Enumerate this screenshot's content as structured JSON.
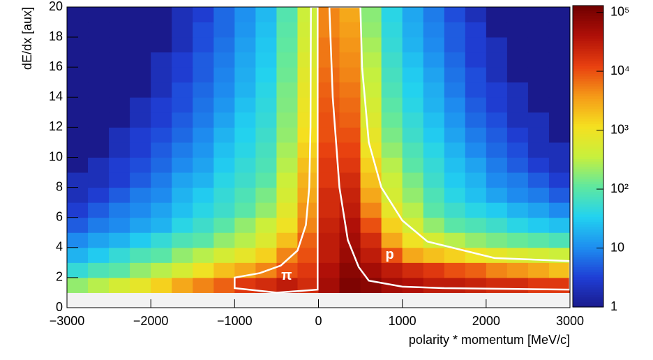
{
  "chart_data": {
    "type": "heatmap",
    "xlabel": "polarity * momentum [MeV/c]",
    "ylabel": "dE/dx [aux]",
    "xlim": [
      -3000,
      3000
    ],
    "ylim": [
      0,
      20
    ],
    "xticks": [
      {
        "value": -3000,
        "label": "−3000"
      },
      {
        "value": -2000,
        "label": "−2000"
      },
      {
        "value": -1000,
        "label": "−1000"
      },
      0,
      1000,
      2000,
      3000
    ],
    "yticks": [
      0,
      2,
      4,
      6,
      8,
      10,
      12,
      14,
      16,
      18,
      20
    ],
    "zlim": [
      1,
      130000
    ],
    "zscale": "log",
    "zticks": [
      1,
      10,
      {
        "value": 100,
        "label": "10²"
      },
      {
        "value": 1000,
        "label": "10³"
      },
      {
        "value": 10000,
        "label": "10⁴"
      },
      {
        "value": 100000,
        "label": "10⁵"
      }
    ],
    "colors": [
      "#1a1a8c",
      "#1f3fd6",
      "#1e8ff0",
      "#22d2f0",
      "#5fe8a0",
      "#c8f03c",
      "#f5e020",
      "#f59a18",
      "#e84010",
      "#b01008",
      "#700000"
    ],
    "z": [
      [
        0,
        0,
        0,
        0,
        0,
        0,
        0,
        0,
        0,
        0,
        0,
        0,
        0,
        0,
        0,
        0,
        0,
        0,
        0,
        0,
        0,
        0,
        0,
        0
      ],
      [
        200,
        300,
        500,
        800,
        1500,
        3000,
        5000,
        8000,
        15000,
        20000,
        30000,
        20000,
        50000,
        100000,
        80000,
        50000,
        40000,
        30000,
        30000,
        25000,
        20000,
        20000,
        15000,
        15000
      ],
      [
        50,
        80,
        100,
        200,
        300,
        500,
        1000,
        2000,
        3000,
        5000,
        10000,
        15000,
        40000,
        80000,
        50000,
        30000,
        20000,
        15000,
        10000,
        8000,
        5000,
        4000,
        3000,
        2000
      ],
      [
        20,
        30,
        50,
        80,
        100,
        200,
        300,
        500,
        800,
        1500,
        5000,
        10000,
        30000,
        60000,
        30000,
        10000,
        3000,
        2000,
        1500,
        1000,
        800,
        600,
        500,
        400
      ],
      [
        10,
        15,
        20,
        30,
        50,
        80,
        100,
        200,
        300,
        600,
        2000,
        8000,
        30000,
        50000,
        20000,
        3000,
        1000,
        500,
        300,
        200,
        150,
        120,
        100,
        80
      ],
      [
        5,
        8,
        10,
        15,
        20,
        40,
        60,
        100,
        200,
        400,
        1000,
        5000,
        25000,
        40000,
        10000,
        1500,
        500,
        200,
        100,
        80,
        60,
        40,
        30,
        25
      ],
      [
        3,
        5,
        8,
        10,
        15,
        25,
        40,
        60,
        100,
        200,
        700,
        4000,
        20000,
        30000,
        5000,
        800,
        300,
        100,
        60,
        40,
        30,
        20,
        15,
        10
      ],
      [
        2,
        3,
        5,
        8,
        10,
        20,
        30,
        50,
        80,
        150,
        500,
        3000,
        20000,
        25000,
        3000,
        500,
        200,
        80,
        40,
        25,
        15,
        10,
        8,
        5
      ],
      [
        2,
        2,
        3,
        5,
        8,
        15,
        20,
        40,
        60,
        100,
        400,
        2500,
        15000,
        20000,
        2000,
        400,
        150,
        60,
        30,
        20,
        10,
        8,
        5,
        3
      ],
      [
        1,
        2,
        3,
        4,
        6,
        10,
        15,
        30,
        50,
        80,
        300,
        2000,
        15000,
        15000,
        1500,
        300,
        100,
        50,
        25,
        15,
        8,
        5,
        3,
        2
      ],
      [
        1,
        1,
        2,
        3,
        5,
        8,
        12,
        25,
        40,
        70,
        250,
        1500,
        12000,
        12000,
        1000,
        200,
        80,
        40,
        20,
        10,
        6,
        4,
        2,
        2
      ],
      [
        1,
        1,
        2,
        3,
        4,
        6,
        10,
        20,
        35,
        60,
        200,
        1200,
        10000,
        10000,
        800,
        150,
        60,
        30,
        15,
        8,
        5,
        3,
        2,
        1
      ],
      [
        1,
        1,
        1,
        2,
        3,
        5,
        8,
        15,
        30,
        50,
        180,
        1000,
        10000,
        8000,
        600,
        120,
        50,
        25,
        12,
        6,
        4,
        2,
        2,
        1
      ],
      [
        1,
        1,
        1,
        2,
        3,
        4,
        7,
        12,
        25,
        45,
        160,
        900,
        9000,
        7000,
        500,
        100,
        40,
        20,
        10,
        5,
        3,
        2,
        1,
        1
      ],
      [
        1,
        1,
        1,
        1,
        2,
        4,
        6,
        10,
        20,
        40,
        150,
        800,
        8000,
        6000,
        400,
        80,
        35,
        18,
        8,
        4,
        3,
        2,
        1,
        1
      ],
      [
        1,
        1,
        1,
        1,
        2,
        3,
        5,
        9,
        18,
        35,
        130,
        700,
        7000,
        5000,
        350,
        70,
        30,
        15,
        7,
        4,
        2,
        1,
        1,
        1
      ],
      [
        1,
        1,
        1,
        1,
        2,
        3,
        5,
        8,
        16,
        30,
        120,
        600,
        6000,
        4500,
        300,
        60,
        25,
        12,
        6,
        3,
        2,
        1,
        1,
        1
      ],
      [
        1,
        1,
        1,
        1,
        1,
        2,
        4,
        7,
        14,
        28,
        110,
        500,
        6000,
        4000,
        250,
        50,
        20,
        10,
        5,
        3,
        2,
        1,
        1,
        1
      ],
      [
        1,
        1,
        1,
        1,
        1,
        2,
        4,
        6,
        12,
        25,
        100,
        450,
        5000,
        3500,
        200,
        45,
        18,
        9,
        5,
        3,
        1,
        1,
        1,
        1
      ],
      [
        1,
        1,
        1,
        1,
        1,
        2,
        3,
        6,
        11,
        22,
        90,
        400,
        5000,
        3000,
        180,
        40,
        16,
        8,
        4,
        2,
        1,
        1,
        1,
        1
      ]
    ],
    "contours": [
      {
        "label": "π",
        "points": [
          [
            -1000,
            1.5
          ],
          [
            -1000,
            2.0
          ],
          [
            -700,
            2.3
          ],
          [
            -450,
            2.8
          ],
          [
            -250,
            3.8
          ],
          [
            -150,
            5.5
          ],
          [
            -110,
            8
          ],
          [
            -95,
            12
          ],
          [
            -90,
            20
          ],
          [
            -10,
            20
          ],
          [
            -10,
            1.2
          ],
          [
            -500,
            1.0
          ],
          [
            -1000,
            1.3
          ]
        ]
      },
      {
        "label": "p",
        "points": [
          [
            130,
            20
          ],
          [
            500,
            20
          ],
          [
            520,
            16
          ],
          [
            600,
            11
          ],
          [
            750,
            8
          ],
          [
            1000,
            5.8
          ],
          [
            1300,
            4.4
          ],
          [
            2100,
            3.3
          ],
          [
            3000,
            3.1
          ],
          [
            3000,
            1.2
          ],
          [
            1500,
            1.3
          ],
          [
            1000,
            1.4
          ],
          [
            600,
            1.8
          ],
          [
            480,
            2.7
          ],
          [
            350,
            4.5
          ],
          [
            250,
            8
          ],
          [
            170,
            14
          ],
          [
            130,
            20
          ]
        ]
      }
    ]
  }
}
